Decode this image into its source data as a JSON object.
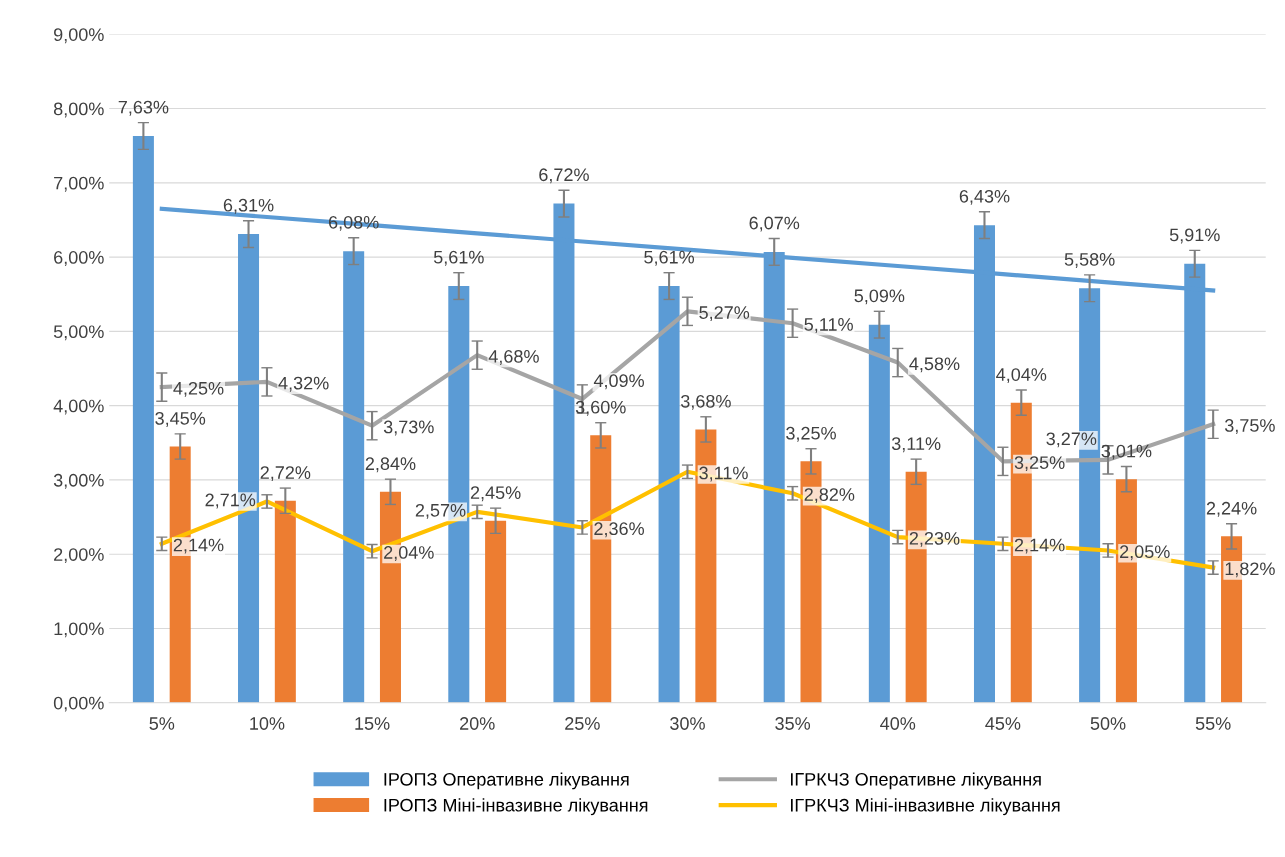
{
  "chart_data": {
    "type": "bar",
    "categories": [
      "5%",
      "10%",
      "15%",
      "20%",
      "25%",
      "30%",
      "35%",
      "40%",
      "45%",
      "50%",
      "55%"
    ],
    "series": [
      {
        "name": "ІРОПЗ Оперативне лікування",
        "color": "#5b9bd5",
        "values": [
          7.63,
          6.31,
          6.08,
          5.61,
          6.72,
          5.61,
          6.07,
          5.09,
          6.43,
          5.58,
          5.91
        ],
        "errors": [
          0.18,
          0.18,
          0.18,
          0.18,
          0.18,
          0.18,
          0.18,
          0.18,
          0.18,
          0.18,
          0.18
        ],
        "value_labels": [
          "7,63%",
          "6,31%",
          "6,08%",
          "5,61%",
          "6,72%",
          "5,61%",
          "6,07%",
          "5,09%",
          "6,43%",
          "5,58%",
          "5,91%"
        ]
      },
      {
        "name": "ІРОПЗ Міні-інвазивне лікування",
        "color": "#ed7d31",
        "values": [
          3.45,
          2.72,
          2.84,
          2.45,
          3.6,
          3.68,
          3.25,
          3.11,
          4.04,
          3.01,
          2.24
        ],
        "errors": [
          0.17,
          0.17,
          0.17,
          0.17,
          0.17,
          0.17,
          0.17,
          0.17,
          0.17,
          0.17,
          0.17
        ],
        "value_labels": [
          "3,45%",
          "2,72%",
          "2,84%",
          "2,45%",
          "3,60%",
          "3,68%",
          "3,25%",
          "3,11%",
          "4,04%",
          "3,01%",
          "2,24%"
        ]
      },
      {
        "name": "ІГРКЧЗ Оперативне лікування",
        "type": "line",
        "color": "#a5a5a5",
        "values": [
          4.25,
          4.32,
          3.73,
          4.68,
          4.09,
          5.27,
          5.11,
          4.58,
          3.25,
          3.27,
          3.75
        ],
        "errors": [
          0.19,
          0.19,
          0.19,
          0.19,
          0.19,
          0.19,
          0.19,
          0.19,
          0.19,
          0.19,
          0.19
        ],
        "value_labels": [
          "4,25%",
          "4,32%",
          "3,73%",
          "4,68%",
          "4,09%",
          "5,27%",
          "5,11%",
          "4,58%",
          "3,25%",
          "3,27%",
          "3,75%"
        ]
      },
      {
        "name": "ІГРКЧЗ Міні-інвазивне лікування",
        "type": "line",
        "color": "#ffc000",
        "values": [
          2.14,
          2.71,
          2.04,
          2.57,
          2.36,
          3.11,
          2.82,
          2.23,
          2.14,
          2.05,
          1.82
        ],
        "errors": [
          0.09,
          0.09,
          0.09,
          0.09,
          0.09,
          0.09,
          0.09,
          0.09,
          0.09,
          0.09,
          0.09
        ],
        "value_labels": [
          "2,14%",
          "2,71%",
          "2,04%",
          "2,57%",
          "2,36%",
          "3,11%",
          "2,82%",
          "2,23%",
          "2,14%",
          "2,05%",
          "1,82%"
        ]
      },
      {
        "type": "line",
        "color": "#5b9bd5",
        "values": [
          6.65,
          6.54,
          6.43,
          6.32,
          6.21,
          6.1,
          5.99,
          5.88,
          5.77,
          5.66,
          5.55
        ]
      }
    ],
    "ylim": [
      0,
      9
    ],
    "yticks": [
      {
        "value": 0,
        "label": "0,00%"
      },
      {
        "value": 1,
        "label": "1,00%"
      },
      {
        "value": 2,
        "label": "2,00%"
      },
      {
        "value": 3,
        "label": "3,00%"
      },
      {
        "value": 4,
        "label": "4,00%"
      },
      {
        "value": 5,
        "label": "5,00%"
      },
      {
        "value": 6,
        "label": "6,00%"
      },
      {
        "value": 7,
        "label": "7,00%"
      },
      {
        "value": 8,
        "label": "8,00%"
      },
      {
        "value": 9,
        "label": "9,00%"
      }
    ],
    "grid": "y",
    "legend": "bottom",
    "marker": "none",
    "line_style": "solid"
  }
}
